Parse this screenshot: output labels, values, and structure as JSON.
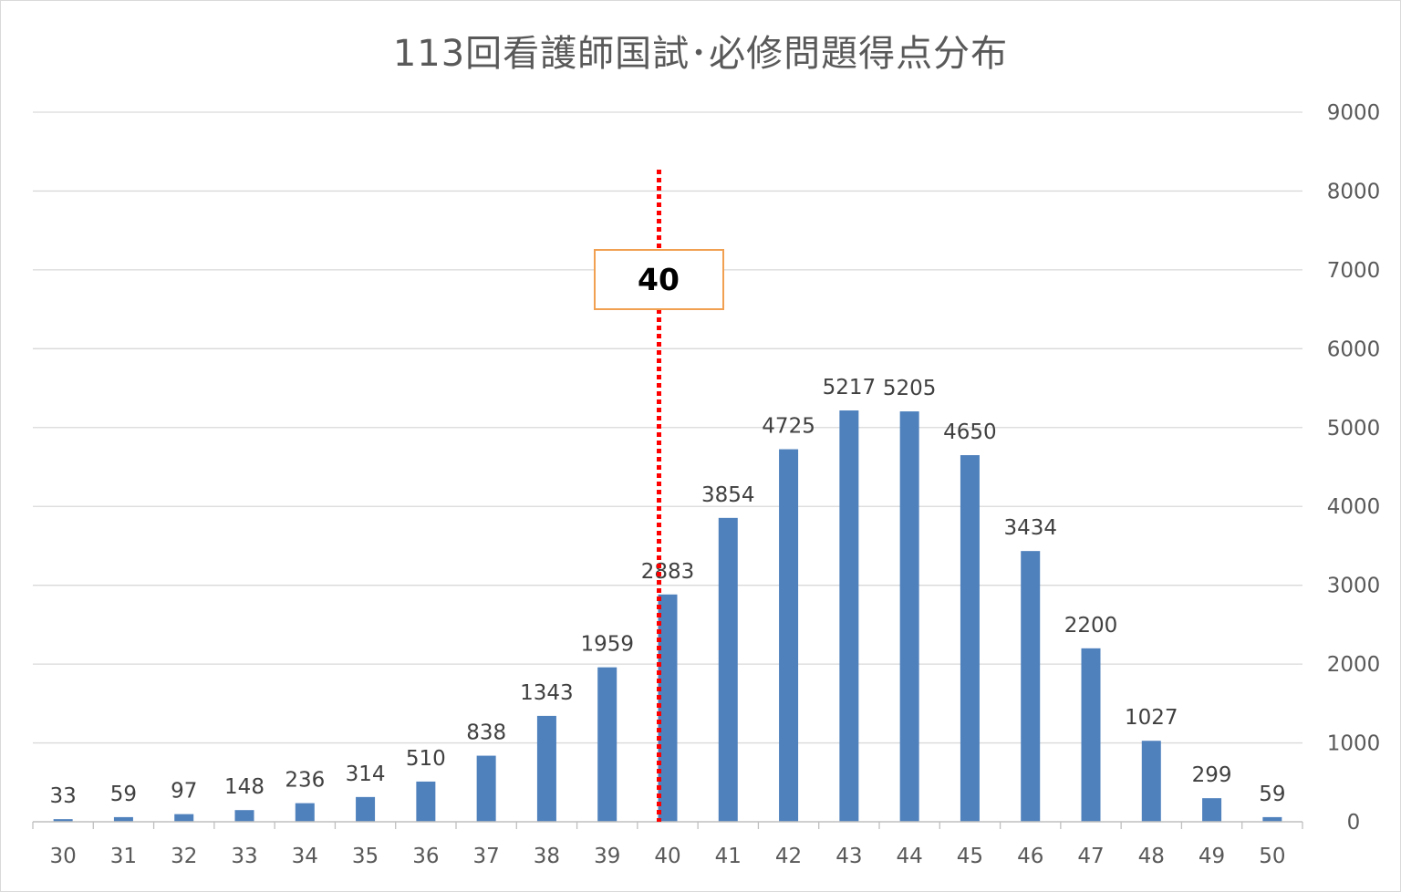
{
  "chart_data": {
    "type": "bar",
    "title": "113回看護師国試･必修問題得点分布",
    "categories": [
      "30",
      "31",
      "32",
      "33",
      "34",
      "35",
      "36",
      "37",
      "38",
      "39",
      "40",
      "41",
      "42",
      "43",
      "44",
      "45",
      "46",
      "47",
      "48",
      "49",
      "50"
    ],
    "values": [
      33,
      59,
      97,
      148,
      236,
      314,
      510,
      838,
      1343,
      1959,
      2883,
      3854,
      4725,
      5217,
      5205,
      4650,
      3434,
      2200,
      1027,
      299,
      59
    ],
    "ylim": [
      0,
      9000
    ],
    "yticks": [
      "0",
      "1000",
      "2000",
      "3000",
      "4000",
      "5000",
      "6000",
      "7000",
      "8000",
      "9000"
    ],
    "y_axis_side": "right",
    "grid": true,
    "bar_color": "#4f81bd",
    "threshold": {
      "label": "40",
      "category": "40",
      "line_color": "#ff0000",
      "box_border_color": "#f0a050"
    }
  }
}
